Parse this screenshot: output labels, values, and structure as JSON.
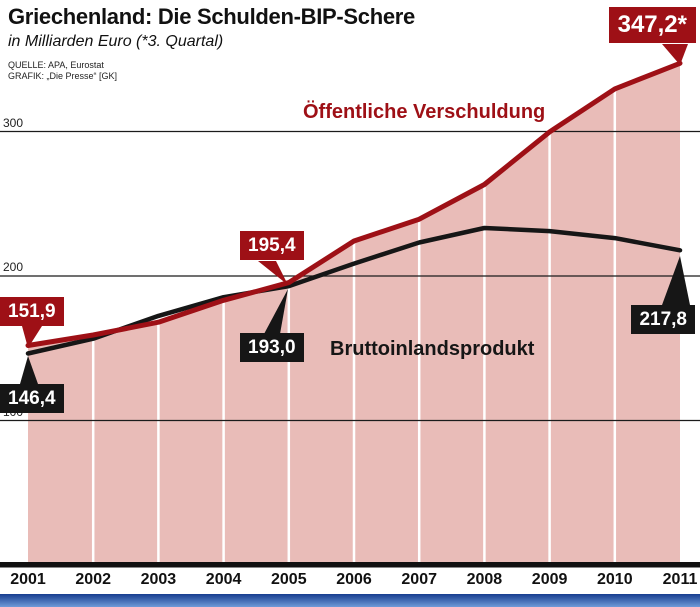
{
  "header": {
    "title": "Griechenland: Die Schulden-BIP-Schere",
    "subtitle": "in Milliarden Euro (*3. Quartal)",
    "source_line1": "QUELLE: APA, Eurostat",
    "source_line2": "GRAFIK: „Die Presse“ [GK]"
  },
  "chart_data": {
    "type": "area",
    "title": "Griechenland: Die Schulden-BIP-Schere",
    "subtitle": "in Milliarden Euro (*3. Quartal)",
    "x": [
      "2001",
      "2002",
      "2003",
      "2004",
      "2005",
      "2006",
      "2007",
      "2008",
      "2009",
      "2010",
      "2011"
    ],
    "series": [
      {
        "name": "Öffentliche Verschuldung",
        "color": "#9e1016",
        "values": [
          151.9,
          159.2,
          168.0,
          183.2,
          195.4,
          224.2,
          239.3,
          263.3,
          299.7,
          329.5,
          347.2
        ]
      },
      {
        "name": "Bruttoinlandsprodukt",
        "color": "#161616",
        "values": [
          146.4,
          156.6,
          172.4,
          185.3,
          193.0,
          208.6,
          223.2,
          233.2,
          231.1,
          226.2,
          217.8
        ]
      }
    ],
    "area_fill": "#e9bcb8",
    "yticks": [
      300,
      200,
      100
    ],
    "ylim": [
      0,
      360
    ],
    "grid": "horizontal",
    "legend_position": "inline",
    "note": "*3. Quartal"
  },
  "annotations": {
    "debt_start": "151,9",
    "gdp_start": "146,4",
    "debt_2005": "195,4",
    "gdp_2005": "193,0",
    "debt_end": "347,2*",
    "gdp_end": "217,8"
  },
  "colors": {
    "debt": "#9e1016",
    "gdp": "#161616",
    "area": "#e9bcb8",
    "footer_top": "#173d8f",
    "footer_bottom": "#6f9bd8"
  }
}
